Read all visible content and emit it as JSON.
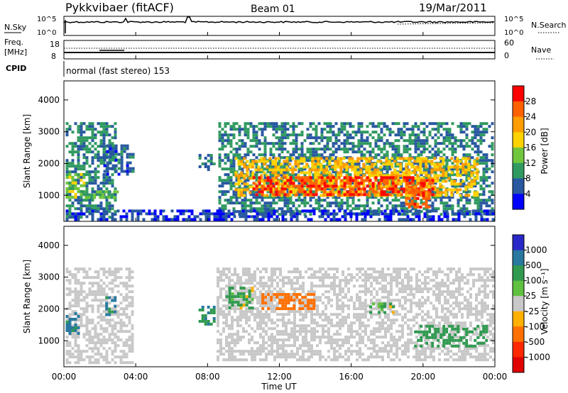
{
  "header": {
    "station": "Pykkvibaer (fitACF)",
    "beam": "Beam 01",
    "date": "19/Mar/2011"
  },
  "noise_panel": {
    "left_label": "N.Sky",
    "right_label": "N.Search",
    "left_ticks": [
      "10^5",
      "10^0"
    ],
    "right_ticks": [
      "10^5",
      "10^0"
    ]
  },
  "freq_panel": {
    "left_label_1": "Freq.",
    "left_label_2": "[MHz]",
    "right_label": "Nave",
    "left_ticks": [
      "18",
      "8"
    ],
    "right_ticks": [
      "60",
      "0"
    ]
  },
  "cpid": {
    "label": "CPID",
    "text": "normal (fast stereo) 153"
  },
  "x_axis": {
    "label": "Time UT",
    "ticks": [
      "00:00",
      "04:00",
      "08:00",
      "12:00",
      "16:00",
      "20:00",
      "00:00"
    ]
  },
  "power_colorbar": {
    "label": "Power [dB]",
    "ticks": [
      "28",
      "24",
      "20",
      "16",
      "12",
      "8",
      "4"
    ],
    "colors": [
      "#ff0000",
      "#ff6000",
      "#ff9c00",
      "#ffd200",
      "#70c63c",
      "#309a60",
      "#2858a0",
      "#0000ff"
    ]
  },
  "velocity_colorbar": {
    "label": "Velocity [m s⁻¹]",
    "ticks": [
      "1000",
      "500",
      "100",
      "25",
      "-25",
      "-100",
      "-500",
      "-1000"
    ],
    "colors": [
      "#2828c8",
      "#2878a0",
      "#309a50",
      "#60c040",
      "#c8c8c8",
      "#ffb000",
      "#ff7000",
      "#ff2800",
      "#e00000"
    ]
  },
  "chart_data": [
    {
      "type": "heatmap",
      "panel": "power",
      "ylabel": "Slant Range [km]",
      "xlabel": "",
      "ylim": [
        180,
        4600
      ],
      "xlim_hours": [
        0,
        24
      ],
      "y_ticks": [
        1000,
        2000,
        3000,
        4000
      ],
      "colorbar_label": "Power [dB]",
      "value_range": [
        2,
        32
      ],
      "regions": [
        {
          "t0": 0.1,
          "t1": 2.9,
          "r0": 300,
          "r1": 3300,
          "value": 10
        },
        {
          "t0": 0.1,
          "t1": 1.2,
          "r0": 900,
          "r1": 1700,
          "value": 16
        },
        {
          "t0": 1.0,
          "t1": 3.0,
          "r0": 900,
          "r1": 1150,
          "value": 14
        },
        {
          "t0": 2.2,
          "t1": 3.8,
          "r0": 1700,
          "r1": 2600,
          "value": 8
        },
        {
          "t0": 7.5,
          "t1": 8.4,
          "r0": 1800,
          "r1": 2300,
          "value": 10
        },
        {
          "t0": 8.6,
          "t1": 23.9,
          "r0": 400,
          "r1": 3300,
          "value": 10
        },
        {
          "t0": 9.5,
          "t1": 23.0,
          "r0": 1000,
          "r1": 2200,
          "value": 20
        },
        {
          "t0": 10.5,
          "t1": 20.5,
          "r0": 1050,
          "r1": 1600,
          "value": 28
        },
        {
          "t0": 19.0,
          "t1": 20.3,
          "r0": 650,
          "r1": 1300,
          "value": 26
        },
        {
          "t0": 0.1,
          "t1": 23.9,
          "r0": 200,
          "r1": 550,
          "value": 6
        }
      ]
    },
    {
      "type": "heatmap",
      "panel": "velocity",
      "ylabel": "Slant Range [km]",
      "xlabel": "Time UT",
      "ylim": [
        180,
        4600
      ],
      "xlim_hours": [
        0,
        24
      ],
      "y_ticks": [
        1000,
        2000,
        3000,
        4000
      ],
      "colorbar_label": "Velocity [m s⁻¹]",
      "value_range": [
        -1200,
        1200
      ],
      "regions": [
        {
          "t0": 0.1,
          "t1": 3.8,
          "r0": 300,
          "r1": 3300,
          "value": 0
        },
        {
          "t0": 0.1,
          "t1": 0.8,
          "r0": 1200,
          "r1": 1900,
          "value": 600
        },
        {
          "t0": 2.3,
          "t1": 2.8,
          "r0": 1800,
          "r1": 2400,
          "value": 600
        },
        {
          "t0": 7.5,
          "t1": 8.3,
          "r0": 1500,
          "r1": 2100,
          "value": 400
        },
        {
          "t0": 8.5,
          "t1": 23.9,
          "r0": 400,
          "r1": 3300,
          "value": 0
        },
        {
          "t0": 9.0,
          "t1": 10.5,
          "r0": 2000,
          "r1": 2700,
          "value": 150
        },
        {
          "t0": 17.0,
          "t1": 18.5,
          "r0": 1900,
          "r1": 2200,
          "value": 150
        },
        {
          "t0": 19.5,
          "t1": 23.5,
          "r0": 800,
          "r1": 1500,
          "value": 300
        },
        {
          "t0": 11.0,
          "t1": 14.0,
          "r0": 2000,
          "r1": 2500,
          "value": -300
        }
      ]
    }
  ]
}
